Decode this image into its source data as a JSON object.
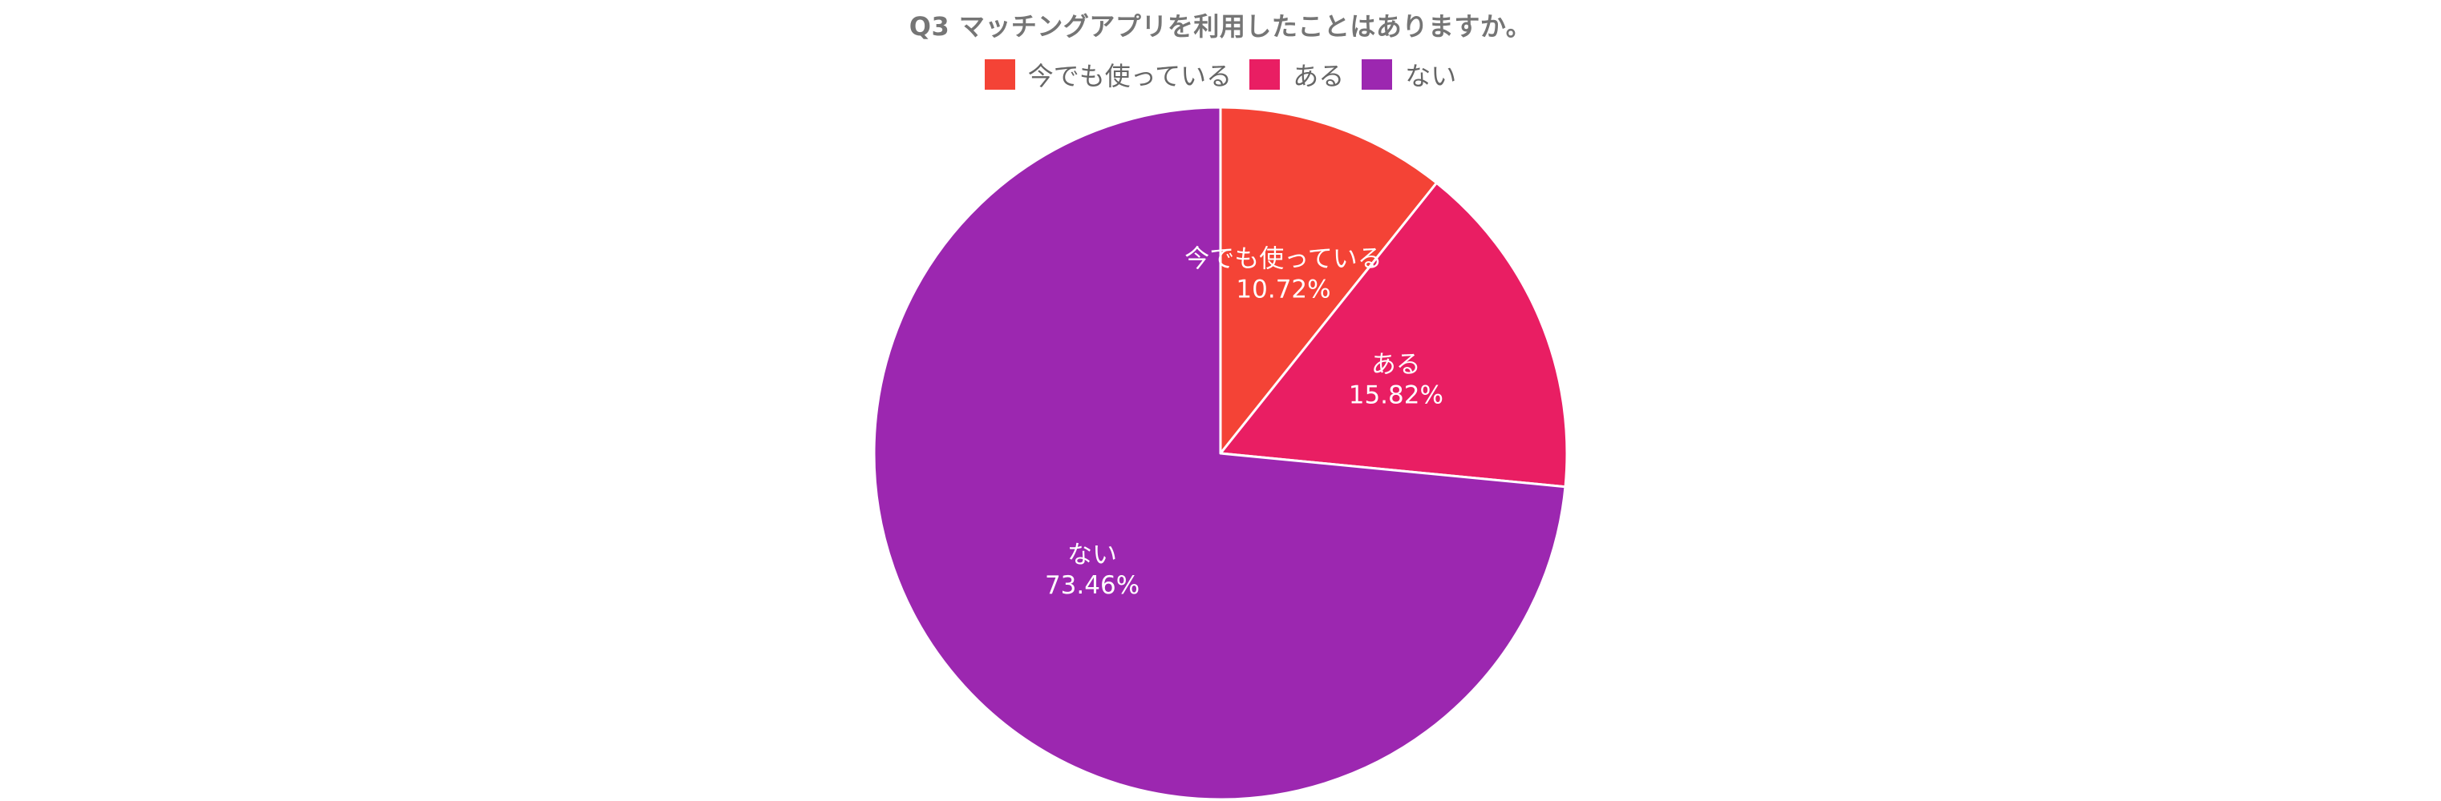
{
  "chart_data": {
    "type": "pie",
    "title": "Q3 マッチングアプリを利用したことはありますか。",
    "legend_position": "top",
    "slices": [
      {
        "label": "今でも使っている",
        "value": 10.72,
        "value_label": "10.72%",
        "color": "#f44336"
      },
      {
        "label": "ある",
        "value": 15.82,
        "value_label": "15.82%",
        "color": "#e91e63"
      },
      {
        "label": "ない",
        "value": 73.46,
        "value_label": "73.46%",
        "color": "#9c27b0"
      }
    ]
  }
}
